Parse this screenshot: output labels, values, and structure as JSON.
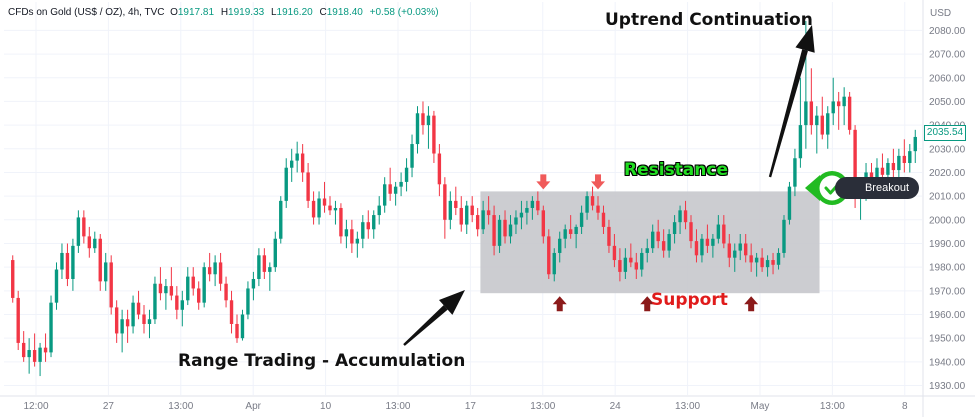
{
  "legend": {
    "symbol": "CFDs on Gold (US$ / OZ), 4h, TVC",
    "o_label": "O",
    "o_value": "1917.81",
    "h_label": "H",
    "h_value": "1919.33",
    "l_label": "L",
    "l_value": "1916.20",
    "c_label": "C",
    "c_value": "1918.40",
    "change": "+0.58 (+0.03%)"
  },
  "currency": "USD",
  "last_price": "2035.54",
  "annotations": {
    "uptrend": "Uptrend Continuation",
    "range": "Range Trading - Accumulation",
    "resistance": "Resistance",
    "support": "Support",
    "breakout": "Breakout"
  },
  "colors": {
    "up": "#089981",
    "down": "#f23645",
    "range_box": "#c6c8cc",
    "marker_red": "#f05a5a",
    "marker_dark": "#8b1a1a"
  },
  "chart_data": {
    "type": "candlestick",
    "ylim": [
      1926,
      2092
    ],
    "yticks": [
      1930,
      1940,
      1950,
      1960,
      1970,
      1980,
      1990,
      2000,
      2010,
      2020,
      2030,
      2040,
      2050,
      2060,
      2070,
      2080
    ],
    "xticks": [
      "12:00",
      "27",
      "13:00",
      "Apr",
      "10",
      "13:00",
      "17",
      "13:00",
      "24",
      "13:00",
      "May",
      "13:00",
      "8"
    ],
    "range_box": {
      "index_start": 86,
      "index_end": 147,
      "low": 1969,
      "high": 2012
    },
    "resistance_markers": [
      97,
      107
    ],
    "support_markers": [
      100,
      116,
      135
    ],
    "breakout_index": 147,
    "candles": [
      [
        1983,
        1985,
        1965,
        1967
      ],
      [
        1967,
        1970,
        1945,
        1948
      ],
      [
        1948,
        1953,
        1940,
        1942
      ],
      [
        1942,
        1950,
        1935,
        1945
      ],
      [
        1945,
        1952,
        1938,
        1940
      ],
      [
        1940,
        1948,
        1934,
        1946
      ],
      [
        1946,
        1952,
        1940,
        1944
      ],
      [
        1944,
        1968,
        1942,
        1965
      ],
      [
        1965,
        1982,
        1962,
        1979
      ],
      [
        1979,
        1990,
        1975,
        1986
      ],
      [
        1986,
        1990,
        1972,
        1975
      ],
      [
        1975,
        1992,
        1970,
        1989
      ],
      [
        1989,
        2004,
        1986,
        2001
      ],
      [
        2001,
        2004,
        1990,
        1993
      ],
      [
        1993,
        1997,
        1984,
        1988
      ],
      [
        1988,
        1995,
        1986,
        1992
      ],
      [
        1992,
        1994,
        1970,
        1974
      ],
      [
        1974,
        1986,
        1970,
        1982
      ],
      [
        1982,
        1985,
        1960,
        1963
      ],
      [
        1963,
        1966,
        1948,
        1952
      ],
      [
        1952,
        1962,
        1944,
        1958
      ],
      [
        1958,
        1962,
        1948,
        1955
      ],
      [
        1955,
        1968,
        1952,
        1965
      ],
      [
        1965,
        1970,
        1958,
        1960
      ],
      [
        1960,
        1964,
        1952,
        1956
      ],
      [
        1956,
        1962,
        1950,
        1958
      ],
      [
        1958,
        1976,
        1956,
        1973
      ],
      [
        1973,
        1980,
        1966,
        1969
      ],
      [
        1969,
        1975,
        1962,
        1972
      ],
      [
        1972,
        1980,
        1966,
        1968
      ],
      [
        1968,
        1972,
        1958,
        1962
      ],
      [
        1962,
        1970,
        1955,
        1966
      ],
      [
        1966,
        1980,
        1964,
        1976
      ],
      [
        1976,
        1980,
        1968,
        1971
      ],
      [
        1971,
        1974,
        1962,
        1965
      ],
      [
        1965,
        1982,
        1963,
        1980
      ],
      [
        1980,
        1986,
        1974,
        1977
      ],
      [
        1977,
        1985,
        1972,
        1982
      ],
      [
        1982,
        1986,
        1970,
        1973
      ],
      [
        1973,
        1976,
        1963,
        1966
      ],
      [
        1966,
        1970,
        1952,
        1956
      ],
      [
        1956,
        1960,
        1948,
        1950
      ],
      [
        1950,
        1962,
        1949,
        1960
      ],
      [
        1960,
        1974,
        1958,
        1971
      ],
      [
        1971,
        1978,
        1966,
        1975
      ],
      [
        1975,
        1988,
        1972,
        1985
      ],
      [
        1985,
        1988,
        1975,
        1978
      ],
      [
        1978,
        1982,
        1970,
        1980
      ],
      [
        1980,
        1995,
        1978,
        1992
      ],
      [
        1992,
        2010,
        1990,
        2008
      ],
      [
        2008,
        2026,
        2005,
        2022
      ],
      [
        2022,
        2030,
        2016,
        2025
      ],
      [
        2025,
        2033,
        2020,
        2028
      ],
      [
        2028,
        2032,
        2016,
        2020
      ],
      [
        2020,
        2024,
        2005,
        2008
      ],
      [
        2008,
        2012,
        1998,
        2001
      ],
      [
        2001,
        2012,
        1998,
        2009
      ],
      [
        2009,
        2016,
        2003,
        2006
      ],
      [
        2006,
        2010,
        2002,
        2004
      ],
      [
        2004,
        2008,
        1998,
        2005
      ],
      [
        2005,
        2007,
        1990,
        1993
      ],
      [
        1993,
        2000,
        1988,
        1996
      ],
      [
        1996,
        2000,
        1986,
        1990
      ],
      [
        1990,
        1995,
        1984,
        1992
      ],
      [
        1992,
        2002,
        1988,
        1999
      ],
      [
        1999,
        2004,
        1992,
        1996
      ],
      [
        1996,
        2004,
        1992,
        2002
      ],
      [
        2002,
        2010,
        1998,
        2006
      ],
      [
        2006,
        2018,
        2003,
        2015
      ],
      [
        2015,
        2022,
        2008,
        2011
      ],
      [
        2011,
        2016,
        2006,
        2014
      ],
      [
        2014,
        2020,
        2010,
        2016
      ],
      [
        2016,
        2026,
        2012,
        2022
      ],
      [
        2022,
        2036,
        2018,
        2032
      ],
      [
        2032,
        2048,
        2028,
        2045
      ],
      [
        2045,
        2050,
        2036,
        2040
      ],
      [
        2040,
        2048,
        2030,
        2044
      ],
      [
        2044,
        2046,
        2024,
        2028
      ],
      [
        2028,
        2032,
        2010,
        2015
      ],
      [
        2015,
        2018,
        1992,
        2000
      ],
      [
        2000,
        2012,
        1996,
        2008
      ],
      [
        2008,
        2014,
        2002,
        2005
      ],
      [
        2005,
        2010,
        1995,
        1998
      ],
      [
        1998,
        2008,
        1994,
        2006
      ],
      [
        2006,
        2010,
        1999,
        2002
      ],
      [
        2002,
        2005,
        1993,
        1996
      ],
      [
        1996,
        2008,
        1994,
        2004
      ],
      [
        2004,
        2010,
        1998,
        2002
      ],
      [
        2002,
        2006,
        1985,
        1989
      ],
      [
        1989,
        2002,
        1986,
        2000
      ],
      [
        2000,
        2004,
        1990,
        1993
      ],
      [
        1993,
        2002,
        1990,
        1998
      ],
      [
        1998,
        2004,
        1994,
        2001
      ],
      [
        2001,
        2008,
        1996,
        2003
      ],
      [
        2003,
        2008,
        1998,
        2005
      ],
      [
        2005,
        2010,
        2000,
        2008
      ],
      [
        2008,
        2012,
        2002,
        2004
      ],
      [
        2004,
        2006,
        1990,
        1993
      ],
      [
        1993,
        1996,
        1975,
        1977
      ],
      [
        1977,
        1988,
        1974,
        1986
      ],
      [
        1986,
        1995,
        1982,
        1992
      ],
      [
        1992,
        1998,
        1988,
        1996
      ],
      [
        1996,
        2002,
        1992,
        1994
      ],
      [
        1994,
        1998,
        1988,
        1997
      ],
      [
        1997,
        2006,
        1994,
        2003
      ],
      [
        2003,
        2012,
        2000,
        2010
      ],
      [
        2010,
        2014,
        2004,
        2006
      ],
      [
        2006,
        2010,
        2000,
        2003
      ],
      [
        2003,
        2006,
        1994,
        1997
      ],
      [
        1997,
        2000,
        1986,
        1989
      ],
      [
        1989,
        1994,
        1980,
        1983
      ],
      [
        1983,
        1988,
        1974,
        1978
      ],
      [
        1978,
        1988,
        1975,
        1984
      ],
      [
        1984,
        1990,
        1980,
        1982
      ],
      [
        1982,
        1986,
        1975,
        1979
      ],
      [
        1979,
        1988,
        1976,
        1986
      ],
      [
        1986,
        1992,
        1982,
        1988
      ],
      [
        1988,
        1998,
        1986,
        1995
      ],
      [
        1995,
        2000,
        1988,
        1991
      ],
      [
        1991,
        1996,
        1984,
        1987
      ],
      [
        1987,
        1996,
        1984,
        1994
      ],
      [
        1994,
        2002,
        1990,
        1999
      ],
      [
        1999,
        2006,
        1994,
        2004
      ],
      [
        2004,
        2008,
        1996,
        1999
      ],
      [
        1999,
        2002,
        1988,
        1991
      ],
      [
        1991,
        1996,
        1982,
        1985
      ],
      [
        1985,
        1994,
        1982,
        1992
      ],
      [
        1992,
        1998,
        1986,
        1989
      ],
      [
        1989,
        1994,
        1984,
        1992
      ],
      [
        1992,
        2002,
        1990,
        1998
      ],
      [
        1998,
        2002,
        1988,
        1990
      ],
      [
        1990,
        1994,
        1980,
        1984
      ],
      [
        1984,
        1990,
        1978,
        1987
      ],
      [
        1987,
        1994,
        1983,
        1990
      ],
      [
        1990,
        1994,
        1982,
        1985
      ],
      [
        1985,
        1990,
        1978,
        1982
      ],
      [
        1982,
        1986,
        1976,
        1984
      ],
      [
        1984,
        1988,
        1978,
        1980
      ],
      [
        1980,
        1985,
        1976,
        1983
      ],
      [
        1983,
        1986,
        1977,
        1981
      ],
      [
        1981,
        1988,
        1979,
        1986
      ],
      [
        1986,
        2002,
        1984,
        2000
      ],
      [
        2000,
        2016,
        1998,
        2014
      ],
      [
        2014,
        2030,
        2010,
        2026
      ],
      [
        2026,
        2060,
        2022,
        2040
      ],
      [
        2040,
        2084,
        2030,
        2050
      ],
      [
        2050,
        2064,
        2036,
        2040
      ],
      [
        2040,
        2048,
        2028,
        2044
      ],
      [
        2044,
        2052,
        2034,
        2036
      ],
      [
        2036,
        2048,
        2030,
        2045
      ],
      [
        2045,
        2060,
        2040,
        2050
      ],
      [
        2050,
        2054,
        2038,
        2048
      ],
      [
        2048,
        2056,
        2040,
        2052
      ],
      [
        2052,
        2054,
        2036,
        2038
      ],
      [
        2038,
        2040,
        2005,
        2010
      ],
      [
        2010,
        2018,
        2000,
        2014
      ],
      [
        2014,
        2024,
        2008,
        2020
      ],
      [
        2020,
        2024,
        2014,
        2016
      ],
      [
        2016,
        2026,
        2012,
        2022
      ],
      [
        2022,
        2028,
        2016,
        2019
      ],
      [
        2019,
        2026,
        2015,
        2024
      ],
      [
        2024,
        2030,
        2018,
        2021
      ],
      [
        2021,
        2030,
        2018,
        2027
      ],
      [
        2027,
        2034,
        2020,
        2024
      ],
      [
        2024,
        2032,
        2020,
        2029
      ],
      [
        2029,
        2038,
        2024,
        2035
      ]
    ]
  }
}
